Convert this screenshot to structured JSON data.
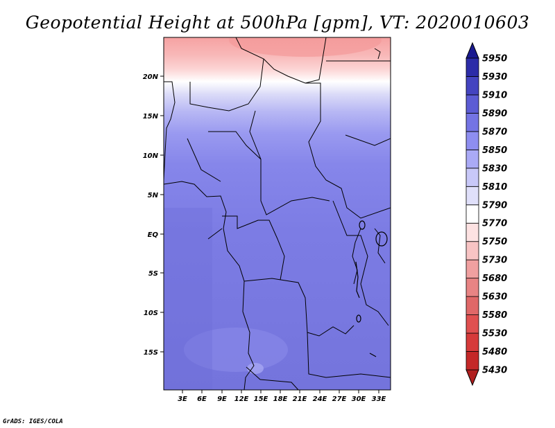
{
  "title": "Geopotential Height at 500hPa [gpm], VT: 2020010603",
  "credit": "GrADS: IGES/COLA",
  "map": {
    "lat_ticks": [
      "20N",
      "15N",
      "10N",
      "5N",
      "EQ",
      "5S",
      "10S",
      "15S"
    ],
    "lon_ticks": [
      "3E",
      "6E",
      "9E",
      "12E",
      "15E",
      "18E",
      "21E",
      "24E",
      "27E",
      "30E",
      "33E"
    ]
  },
  "colorbar": {
    "levels": [
      "5430",
      "5480",
      "5530",
      "5580",
      "5630",
      "5680",
      "5730",
      "5750",
      "5770",
      "5790",
      "5810",
      "5830",
      "5850",
      "5870",
      "5890",
      "5910",
      "5930",
      "5950"
    ],
    "colors": [
      "#b01e1e",
      "#c42828",
      "#d63a3a",
      "#e05050",
      "#e06868",
      "#e88484",
      "#f0a0a0",
      "#f8c4c4",
      "#fde2e2",
      "#ffffff",
      "#e0e0fa",
      "#c8c8f8",
      "#aaaaf6",
      "#8e8ef0",
      "#7474e4",
      "#5c5cd4",
      "#4444c0",
      "#2c2ca8",
      "#1a1a90"
    ]
  }
}
